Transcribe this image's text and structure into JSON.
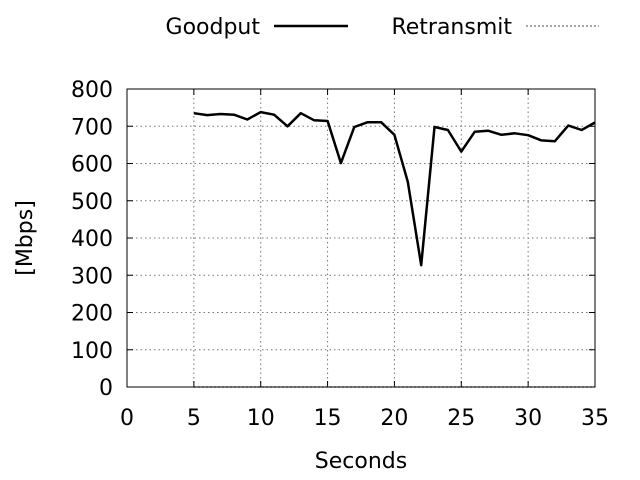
{
  "chart_data": {
    "type": "line",
    "xlabel": "Seconds",
    "ylabel": "[Mbps]",
    "xlim": [
      0,
      35
    ],
    "ylim": [
      0,
      800
    ],
    "xticks": [
      0,
      5,
      10,
      15,
      20,
      25,
      30,
      35
    ],
    "yticks": [
      0,
      100,
      200,
      300,
      400,
      500,
      600,
      700,
      800
    ],
    "grid": true,
    "legend": "top",
    "series": [
      {
        "name": "Goodput",
        "color": "#000000",
        "style": "solid",
        "x": [
          5,
          6,
          7,
          8,
          9,
          10,
          11,
          12,
          13,
          14,
          15,
          16,
          17,
          18,
          19,
          20,
          21,
          22,
          23,
          24,
          25,
          26,
          27,
          28,
          29,
          30,
          31,
          32,
          33,
          34,
          35
        ],
        "y": [
          735,
          730,
          733,
          731,
          718,
          738,
          731,
          700,
          735,
          716,
          714,
          601,
          698,
          711,
          711,
          677,
          551,
          327,
          698,
          690,
          632,
          685,
          688,
          677,
          681,
          676,
          662,
          660,
          702,
          690,
          710
        ]
      },
      {
        "name": "Retransmit",
        "color": "#888888",
        "style": "dotted",
        "x": [
          5,
          6,
          7,
          8,
          9,
          10,
          11,
          12,
          13,
          14,
          15,
          16,
          17,
          18,
          19,
          20,
          21,
          22,
          23,
          24,
          25,
          26,
          27,
          28,
          29,
          30,
          31,
          32,
          33,
          34,
          35
        ],
        "y": [
          0,
          0,
          0,
          0,
          0,
          0,
          0,
          0,
          0,
          0,
          0,
          0,
          0,
          0,
          0,
          0,
          0,
          0,
          0,
          0,
          0,
          0,
          0,
          0,
          0,
          0,
          0,
          0,
          0,
          0,
          0
        ]
      }
    ]
  }
}
